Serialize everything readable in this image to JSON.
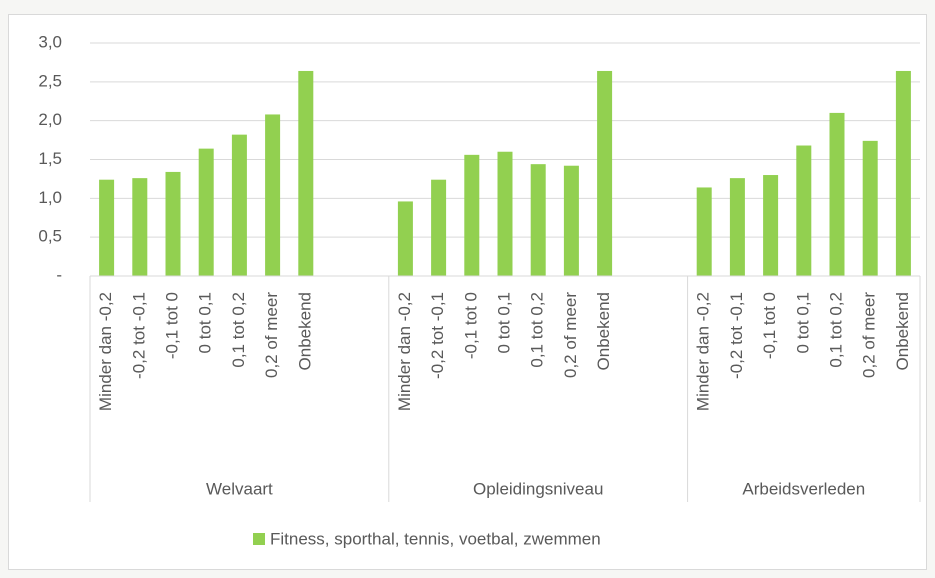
{
  "chart_data": {
    "type": "bar",
    "series": [
      {
        "name": "Fitness, sporthal, tennis, voetbal, zwemmen",
        "color": "#92d050"
      }
    ],
    "groups": [
      {
        "name": "Welvaart",
        "categories": [
          "Minder dan -0,2",
          "-0,2 tot -0,1",
          "-0,1 tot 0",
          "0 tot 0,1",
          "0,1 tot 0,2",
          "0,2 of meer",
          "Onbekend",
          null,
          null
        ],
        "values": [
          1.24,
          1.26,
          1.34,
          1.64,
          1.82,
          2.08,
          2.64,
          null,
          null
        ]
      },
      {
        "name": "Opleidingsniveau",
        "categories": [
          "Minder dan -0,2",
          "-0,2 tot -0,1",
          "-0,1 tot 0",
          "0 tot 0,1",
          "0,1 tot 0,2",
          "0,2 of meer",
          "Onbekend",
          null,
          null
        ],
        "values": [
          0.96,
          1.24,
          1.56,
          1.6,
          1.44,
          1.42,
          2.64,
          null,
          null
        ]
      },
      {
        "name": "Arbeidsverleden",
        "categories": [
          "Minder dan -0,2",
          "-0,2 tot -0,1",
          "-0,1 tot 0",
          "0 tot 0,1",
          "0,1 tot 0,2",
          "0,2 of meer",
          "Onbekend"
        ],
        "values": [
          1.14,
          1.26,
          1.3,
          1.68,
          2.1,
          1.74,
          2.64
        ]
      }
    ],
    "ylim": [
      0,
      3
    ],
    "yticks": [
      {
        "value": 0,
        "label": "-"
      },
      {
        "value": 0.5,
        "label": "0,5"
      },
      {
        "value": 1,
        "label": "1,0"
      },
      {
        "value": 1.5,
        "label": "1,5"
      },
      {
        "value": 2,
        "label": "2,0"
      },
      {
        "value": 2.5,
        "label": "2,5"
      },
      {
        "value": 3,
        "label": "3,0"
      }
    ],
    "grid": true
  }
}
